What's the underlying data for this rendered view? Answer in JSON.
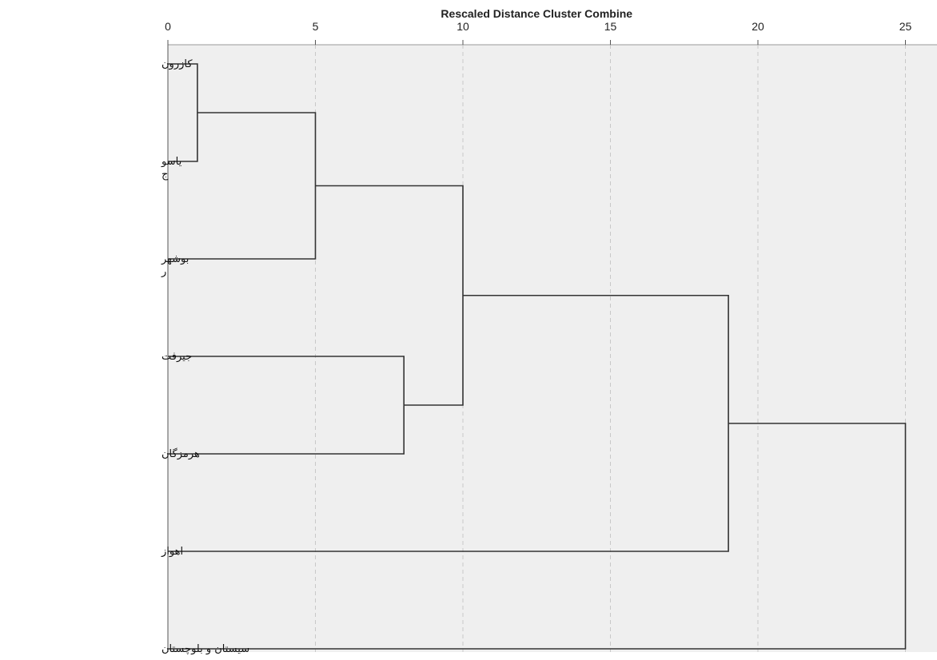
{
  "chart_data": {
    "type": "dendrogram",
    "title": "Rescaled Distance Cluster Combine",
    "x_ticks": [
      {
        "value": 0,
        "label": "0"
      },
      {
        "value": 5,
        "label": "5"
      },
      {
        "value": 10,
        "label": "10"
      },
      {
        "value": 15,
        "label": "15"
      },
      {
        "value": 20,
        "label": "20"
      },
      {
        "value": 25,
        "label": "25"
      }
    ],
    "xlim": [
      0,
      26
    ],
    "grid": true,
    "background": "#efefef",
    "line_color": "#333333",
    "grid_color": "#c8c8c8",
    "leaves": [
      {
        "lines": [
          "کازرون"
        ]
      },
      {
        "lines": [
          "یاسو",
          "ج"
        ]
      },
      {
        "lines": [
          "بوشهر",
          "ر"
        ]
      },
      {
        "lines": [
          "جیرفت"
        ]
      },
      {
        "lines": [
          "هرمزگان"
        ]
      },
      {
        "lines": [
          "اهواز"
        ]
      },
      {
        "lines": [
          "سیستان و بلوچستان"
        ]
      }
    ],
    "merges": [
      {
        "a": [
          0
        ],
        "b": [
          1
        ],
        "distance": 1
      },
      {
        "a": [
          0,
          1
        ],
        "b": [
          2
        ],
        "distance": 5
      },
      {
        "a": [
          3
        ],
        "b": [
          4
        ],
        "distance": 8
      },
      {
        "a": [
          0,
          1,
          2
        ],
        "b": [
          3,
          4
        ],
        "distance": 10
      },
      {
        "a": [
          0,
          1,
          2,
          3,
          4
        ],
        "b": [
          5
        ],
        "distance": 19
      },
      {
        "a": [
          0,
          1,
          2,
          3,
          4,
          5
        ],
        "b": [
          6
        ],
        "distance": 25
      }
    ]
  }
}
